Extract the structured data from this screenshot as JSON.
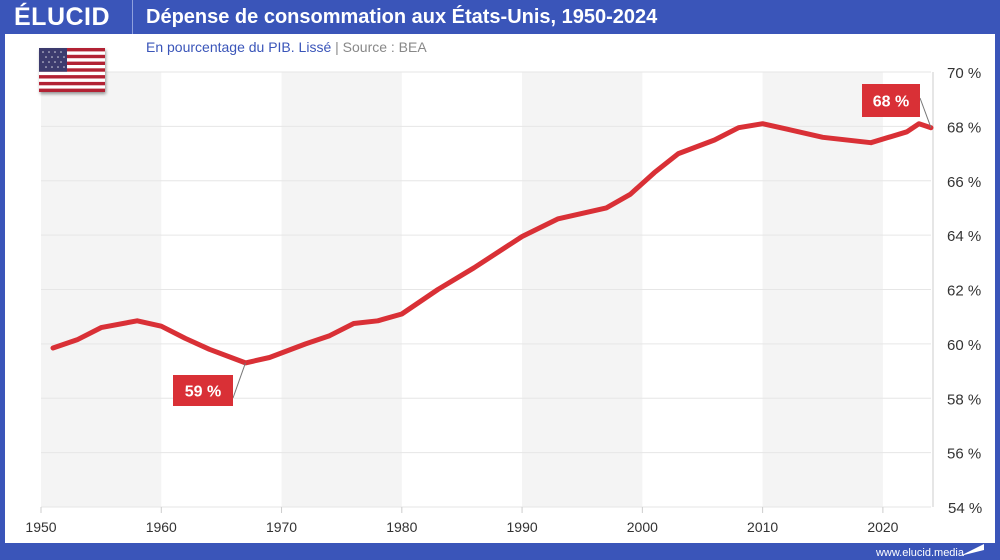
{
  "header": {
    "logo": "ÉLUCID",
    "title": "Dépense de consommation aux États-Unis, 1950-2024"
  },
  "subtitle": {
    "main": "En pourcentage du PIB. Lissé",
    "separator": "|",
    "source": "Source : BEA"
  },
  "footer": {
    "url": "www.elucid.media"
  },
  "flag": "us-flag",
  "colors": {
    "brand": "#3a55b9",
    "line": "#d93036",
    "band": "#f4f4f4"
  },
  "chart_data": {
    "type": "line",
    "title": "Dépense de consommation aux États-Unis, 1950-2024",
    "subtitle": "En pourcentage du PIB. Lissé",
    "xlim": [
      1950,
      2024
    ],
    "ylim": [
      54,
      70
    ],
    "xticks": [
      "1950",
      "1960",
      "1970",
      "1980",
      "1990",
      "2000",
      "2010",
      "2020"
    ],
    "yticks": [
      "54 %",
      "56 %",
      "58 %",
      "60 %",
      "62 %",
      "64 %",
      "66 %",
      "68 %",
      "70 %"
    ],
    "grid": true,
    "yaxis_side": "right",
    "x": [
      1951,
      1953,
      1955,
      1958,
      1960,
      1962,
      1964,
      1967,
      1969,
      1972,
      1974,
      1976,
      1978,
      1980,
      1983,
      1986,
      1990,
      1993,
      1997,
      1999,
      2001,
      2003,
      2006,
      2008,
      2010,
      2012,
      2015,
      2019,
      2022,
      2023,
      2024
    ],
    "y": [
      59.85,
      60.15,
      60.6,
      60.85,
      60.65,
      60.2,
      59.8,
      59.3,
      59.5,
      60.0,
      60.3,
      60.75,
      60.85,
      61.1,
      62.0,
      62.8,
      63.95,
      64.6,
      65.0,
      65.5,
      66.3,
      67.0,
      67.5,
      67.95,
      68.1,
      67.9,
      67.6,
      67.4,
      67.8,
      68.1,
      67.95
    ],
    "annotations": [
      {
        "label": "59 %",
        "x": 1967,
        "y": 59.3
      },
      {
        "label": "68 %",
        "x": 2024,
        "y": 67.95
      }
    ]
  }
}
